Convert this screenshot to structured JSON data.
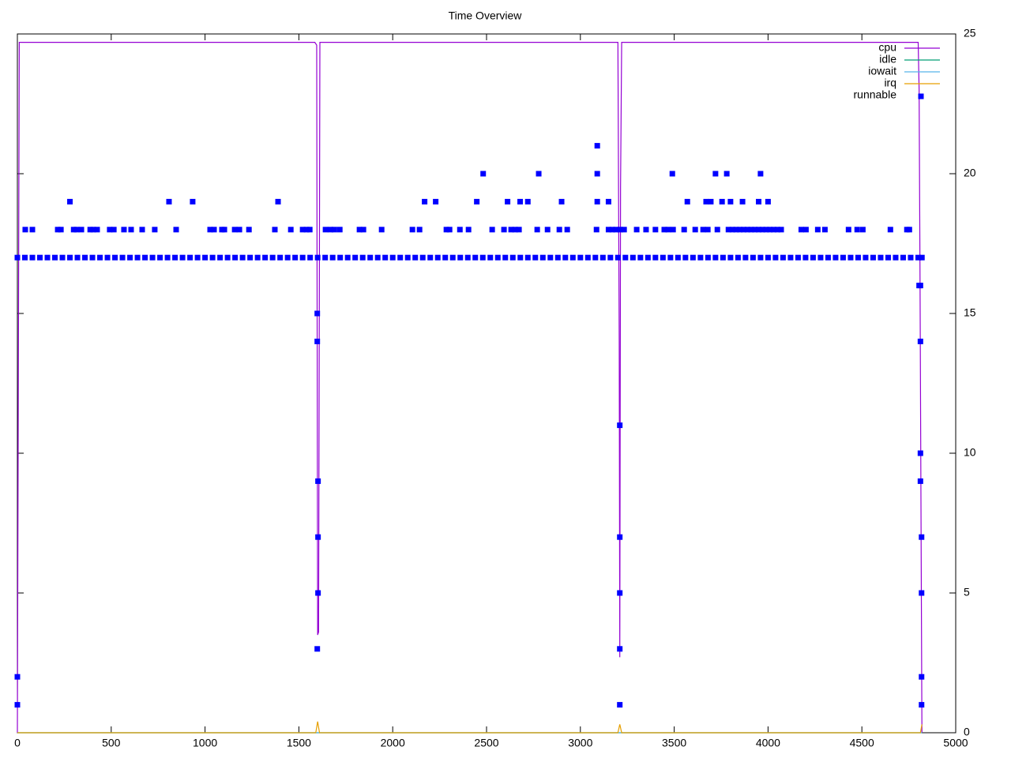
{
  "chart_data": {
    "type": "line",
    "title": "Time Overview",
    "xlim": [
      0,
      5000
    ],
    "xticks": [
      0,
      500,
      1000,
      1500,
      2000,
      2500,
      3000,
      3500,
      4000,
      4500,
      5000
    ],
    "ylim": [
      0,
      25
    ],
    "yticks": [
      0,
      5,
      10,
      15,
      20,
      25
    ],
    "legend": "top right",
    "series": [
      {
        "name": "cpu",
        "color": "#9400d3",
        "x": [
          0,
          10,
          1585,
          1595,
          1600,
          1605,
          1612,
          3200,
          3207,
          3210,
          3214,
          3220,
          4800,
          4805,
          4810,
          4815,
          4820
        ],
        "values": [
          0,
          24.7,
          24.7,
          24.6,
          3.5,
          3.6,
          24.7,
          24.7,
          14,
          2.7,
          19.5,
          24.7,
          24.7,
          23,
          16,
          8,
          0
        ]
      },
      {
        "name": "idle",
        "color": "#009e73",
        "x": [
          0,
          4820
        ],
        "values": [
          0,
          0
        ]
      },
      {
        "name": "iowait",
        "color": "#56b4e9",
        "x": [
          0,
          4820
        ],
        "values": [
          0,
          0
        ]
      },
      {
        "name": "irq",
        "color": "#e69f00",
        "x": [
          0,
          1590,
          1600,
          1610,
          3200,
          3210,
          3220,
          4812,
          4820
        ],
        "values": [
          0,
          0,
          0.4,
          0,
          0,
          0.3,
          0,
          0,
          0.3
        ]
      },
      {
        "name": "runnable",
        "color": "#0000ff",
        "style": "points",
        "x": [
          0,
          40,
          80,
          120,
          160,
          200,
          240,
          280,
          320,
          360,
          400,
          440,
          480,
          520,
          560,
          600,
          640,
          680,
          720,
          760,
          800,
          840,
          880,
          920,
          960,
          1000,
          1040,
          1080,
          1120,
          1160,
          1200,
          1240,
          1280,
          1320,
          1360,
          1400,
          1440,
          1480,
          1520,
          1560,
          1600,
          1640,
          1680,
          1720,
          1760,
          1800,
          1840,
          1880,
          1920,
          1960,
          2000,
          2040,
          2080,
          2120,
          2160,
          2200,
          2240,
          2280,
          2320,
          2360,
          2400,
          2440,
          2480,
          2520,
          2560,
          2600,
          2640,
          2680,
          2720,
          2760,
          2800,
          2840,
          2880,
          2920,
          2960,
          3000,
          3040,
          3080,
          3120,
          3160,
          3200,
          3240,
          3280,
          3320,
          3360,
          3400,
          3440,
          3480,
          3520,
          3560,
          3600,
          3640,
          3680,
          3720,
          3760,
          3800,
          3840,
          3880,
          3920,
          3960,
          4000,
          4040,
          4080,
          4120,
          4160,
          4200,
          4240,
          4280,
          4320,
          4360,
          4400,
          4440,
          4480,
          4520,
          4560,
          4600,
          4640,
          4680,
          4720,
          4760,
          4800,
          4820,
          42,
          80,
          215,
          232,
          300,
          316,
          341,
          388,
          404,
          425,
          492,
          514,
          568,
          606,
          665,
          732,
          846,
          1027,
          1048,
          1090,
          1103,
          1158,
          1183,
          1234,
          1372,
          1457,
          1520,
          1541,
          1558,
          1642,
          1668,
          1689,
          1718,
          1823,
          1844,
          1941,
          2105,
          2143,
          2286,
          2303,
          2358,
          2404,
          2530,
          2593,
          2631,
          2652,
          2673,
          2770,
          2825,
          2888,
          2930,
          3086,
          3150,
          3170,
          3190,
          3212,
          3233,
          3300,
          3350,
          3400,
          3447,
          3468,
          3494,
          3553,
          3612,
          3654,
          3679,
          3730,
          3789,
          3830,
          3870,
          3910,
          3950,
          3990,
          4030,
          4070,
          4177,
          4202,
          4265,
          4303,
          4429,
          4475,
          4505,
          4652,
          4740,
          4753,
          3810,
          3850,
          3890,
          3930,
          3970,
          4010,
          4050,
          280,
          808,
          934,
          1389,
          2170,
          2229,
          2448,
          2612,
          2679,
          2720,
          2900,
          3090,
          3150,
          3570,
          3670,
          3695,
          3755,
          3800,
          3864,
          3950,
          4000,
          2482,
          2778,
          3090,
          3490,
          3720,
          3780,
          3960,
          3090,
          0,
          0,
          1598,
          1598,
          1598,
          1602,
          1602,
          1602,
          3210,
          3210,
          3210,
          3210,
          3210,
          4805,
          4812,
          4812,
          4812,
          4812,
          4818,
          4818,
          4818,
          4818
        ],
        "values": [
          17,
          17,
          17,
          17,
          17,
          17,
          17,
          17,
          17,
          17,
          17,
          17,
          17,
          17,
          17,
          17,
          17,
          17,
          17,
          17,
          17,
          17,
          17,
          17,
          17,
          17,
          17,
          17,
          17,
          17,
          17,
          17,
          17,
          17,
          17,
          17,
          17,
          17,
          17,
          17,
          17,
          17,
          17,
          17,
          17,
          17,
          17,
          17,
          17,
          17,
          17,
          17,
          17,
          17,
          17,
          17,
          17,
          17,
          17,
          17,
          17,
          17,
          17,
          17,
          17,
          17,
          17,
          17,
          17,
          17,
          17,
          17,
          17,
          17,
          17,
          17,
          17,
          17,
          17,
          17,
          17,
          17,
          17,
          17,
          17,
          17,
          17,
          17,
          17,
          17,
          17,
          17,
          17,
          17,
          17,
          17,
          17,
          17,
          17,
          17,
          17,
          17,
          17,
          17,
          17,
          17,
          17,
          17,
          17,
          17,
          17,
          17,
          17,
          17,
          17,
          17,
          17,
          17,
          17,
          17,
          17,
          17,
          18,
          18,
          18,
          18,
          18,
          18,
          18,
          18,
          18,
          18,
          18,
          18,
          18,
          18,
          18,
          18,
          18,
          18,
          18,
          18,
          18,
          18,
          18,
          18,
          18,
          18,
          18,
          18,
          18,
          18,
          18,
          18,
          18,
          18,
          18,
          18,
          18,
          18,
          18,
          18,
          18,
          18,
          18,
          18,
          18,
          18,
          18,
          18,
          18,
          18,
          18,
          18,
          18,
          18,
          18,
          18,
          18,
          18,
          18,
          18,
          18,
          18,
          18,
          18,
          18,
          18,
          18,
          18,
          18,
          18,
          18,
          18,
          18,
          18,
          18,
          18,
          18,
          18,
          18,
          18,
          18,
          18,
          18,
          18,
          18,
          18,
          18,
          18,
          18,
          18,
          18,
          18,
          18,
          19,
          19,
          19,
          19,
          19,
          19,
          19,
          19,
          19,
          19,
          19,
          19,
          19,
          19,
          19,
          19,
          19,
          19,
          19,
          19,
          19,
          20,
          20,
          20,
          20,
          20,
          20,
          20,
          21,
          1,
          2,
          15,
          14,
          3,
          9,
          7,
          5,
          11,
          7,
          5,
          3,
          1,
          16,
          16,
          14,
          10,
          9,
          7,
          5,
          2,
          1
        ]
      }
    ]
  }
}
